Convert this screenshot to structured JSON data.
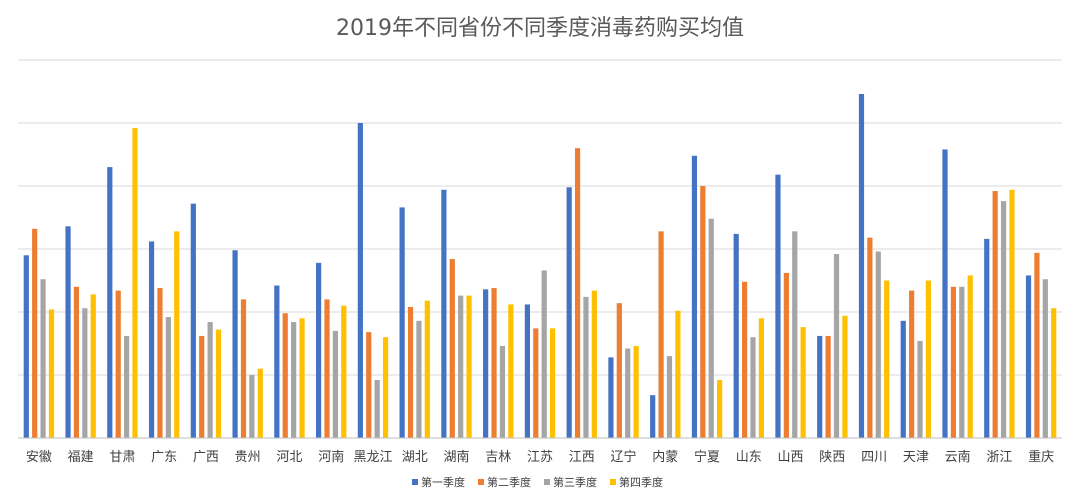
{
  "chart_data": {
    "type": "bar",
    "title": "2019年不同省份不同季度消毒药购买均值",
    "xlabel": "",
    "ylabel": "",
    "ylim": [
      0,
      30
    ],
    "y_gridlines": true,
    "y_tick_labels_visible": false,
    "legend_position": "bottom",
    "categories": [
      "安徽",
      "福建",
      "甘肃",
      "广东",
      "广西",
      "贵州",
      "河北",
      "河南",
      "黑龙江",
      "湖北",
      "湖南",
      "吉林",
      "江苏",
      "江西",
      "辽宁",
      "内蒙",
      "宁夏",
      "山东",
      "山西",
      "陕西",
      "四川",
      "天津",
      "云南",
      "浙江",
      "重庆"
    ],
    "series": [
      {
        "name": "第一季度",
        "color": "#4472C4",
        "values": [
          14.5,
          16.8,
          21.5,
          15.6,
          18.6,
          14.9,
          12.1,
          13.9,
          25.0,
          18.3,
          19.7,
          11.8,
          10.6,
          19.9,
          6.4,
          3.4,
          22.4,
          16.2,
          20.9,
          8.1,
          27.3,
          9.3,
          22.9,
          15.8,
          12.9
        ]
      },
      {
        "name": "第二季度",
        "color": "#ED7D31",
        "values": [
          16.6,
          12.0,
          11.7,
          11.9,
          8.1,
          11.0,
          9.9,
          11.0,
          8.4,
          10.4,
          14.2,
          11.9,
          8.7,
          23.0,
          10.7,
          16.4,
          20.0,
          12.4,
          13.1,
          8.1,
          15.9,
          11.7,
          12.0,
          19.6,
          14.7
        ]
      },
      {
        "name": "第三季度",
        "color": "#A5A5A5",
        "values": [
          12.6,
          10.3,
          8.1,
          9.6,
          9.2,
          5.0,
          9.2,
          8.5,
          4.6,
          9.3,
          11.3,
          7.3,
          13.3,
          11.2,
          7.1,
          6.5,
          17.4,
          8.0,
          16.4,
          14.6,
          14.8,
          7.7,
          12.0,
          18.8,
          12.6
        ]
      },
      {
        "name": "第四季度",
        "color": "#FFC000",
        "values": [
          10.2,
          11.4,
          24.6,
          16.4,
          8.6,
          5.5,
          9.5,
          10.5,
          8.0,
          10.9,
          11.3,
          10.6,
          8.7,
          11.7,
          7.3,
          10.1,
          4.6,
          9.5,
          8.8,
          9.7,
          12.5,
          12.5,
          12.9,
          19.7,
          10.3
        ]
      }
    ]
  }
}
